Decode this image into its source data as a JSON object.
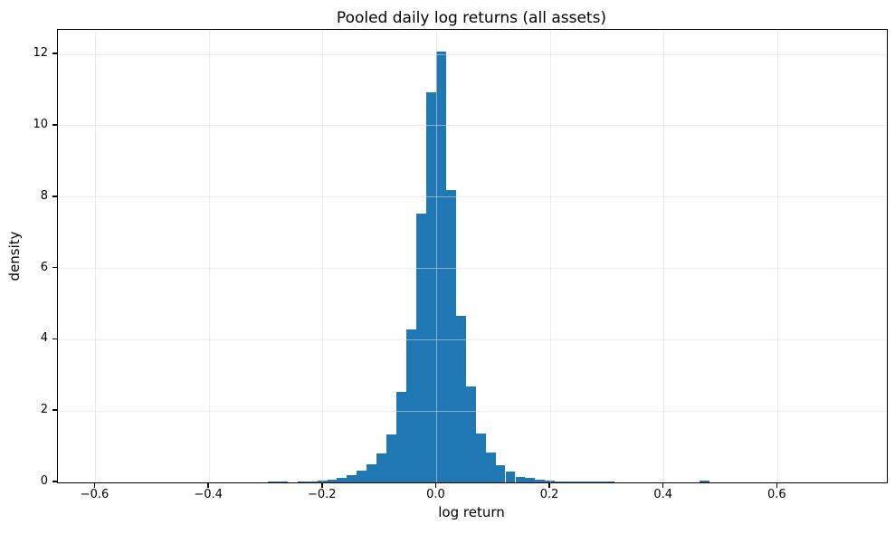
{
  "figure": {
    "background": "#ffffff",
    "axis_color": "#000000",
    "grid_color": "#dcdcdc",
    "bar_color": "#1f77b4"
  },
  "chart_data": {
    "type": "bar",
    "subtype": "histogram",
    "title": "Pooled daily log returns (all assets)",
    "xlabel": "log return",
    "ylabel": "density",
    "xlim": [
      -0.666,
      0.792
    ],
    "ylim": [
      0,
      12.69
    ],
    "grid": true,
    "legend_position": "none",
    "xticks": {
      "values": [
        -0.6,
        -0.4,
        -0.2,
        0.0,
        0.2,
        0.4,
        0.6
      ],
      "labels": [
        "−0.6",
        "−0.4",
        "−0.2",
        "0.0",
        "0.2",
        "0.4",
        "0.6"
      ]
    },
    "yticks": {
      "values": [
        0,
        2,
        4,
        6,
        8,
        10,
        12
      ],
      "labels": [
        "0",
        "2",
        "4",
        "6",
        "8",
        "10",
        "12"
      ]
    },
    "bin_width": 0.01746,
    "bins": [
      {
        "x0": -0.2969,
        "density": 0.035
      },
      {
        "x0": -0.2794,
        "density": 0.035
      },
      {
        "x0": -0.262,
        "density": 0.0
      },
      {
        "x0": -0.2446,
        "density": 0.02
      },
      {
        "x0": -0.2273,
        "density": 0.03
      },
      {
        "x0": -0.2098,
        "density": 0.05
      },
      {
        "x0": -0.1924,
        "density": 0.08
      },
      {
        "x0": -0.175,
        "density": 0.13
      },
      {
        "x0": -0.1575,
        "density": 0.2
      },
      {
        "x0": -0.1402,
        "density": 0.33
      },
      {
        "x0": -0.1227,
        "density": 0.5
      },
      {
        "x0": -0.1054,
        "density": 0.8
      },
      {
        "x0": -0.0879,
        "density": 1.35
      },
      {
        "x0": -0.0705,
        "density": 2.55
      },
      {
        "x0": -0.0531,
        "density": 4.3
      },
      {
        "x0": -0.0356,
        "density": 7.55
      },
      {
        "x0": -0.0183,
        "density": 10.95
      },
      {
        "x0": -0.0008,
        "density": 12.07
      },
      {
        "x0": 0.0167,
        "density": 8.2
      },
      {
        "x0": 0.034,
        "density": 4.68
      },
      {
        "x0": 0.0515,
        "density": 2.68
      },
      {
        "x0": 0.0688,
        "density": 1.38
      },
      {
        "x0": 0.0863,
        "density": 0.83
      },
      {
        "x0": 0.1036,
        "density": 0.47
      },
      {
        "x0": 0.1211,
        "density": 0.3
      },
      {
        "x0": 0.1386,
        "density": 0.15
      },
      {
        "x0": 0.1559,
        "density": 0.13
      },
      {
        "x0": 0.1734,
        "density": 0.08
      },
      {
        "x0": 0.1907,
        "density": 0.04
      },
      {
        "x0": 0.2082,
        "density": 0.03
      },
      {
        "x0": 0.2255,
        "density": 0.03
      },
      {
        "x0": 0.243,
        "density": 0.03
      },
      {
        "x0": 0.2604,
        "density": 0.03
      },
      {
        "x0": 0.2779,
        "density": 0.03
      },
      {
        "x0": 0.2953,
        "density": 0.03
      },
      {
        "x0": 0.4633,
        "density": 0.04
      }
    ]
  }
}
